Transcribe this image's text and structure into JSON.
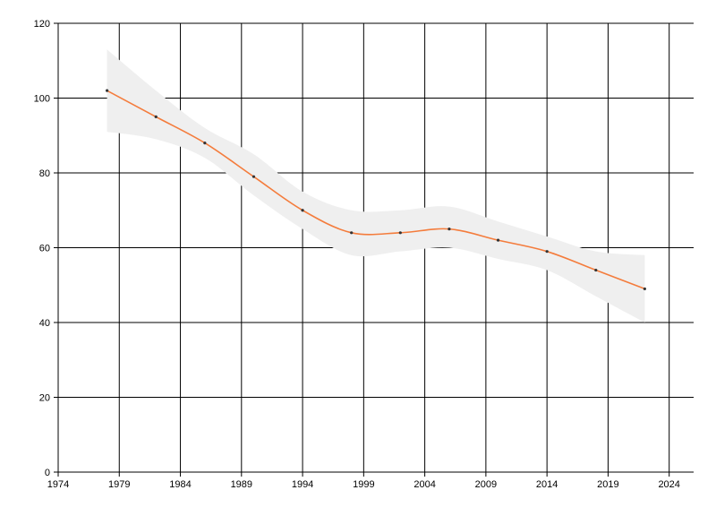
{
  "chart_data": {
    "type": "line",
    "title": "",
    "xlabel": "",
    "ylabel": "",
    "xlim": [
      1974,
      2026
    ],
    "ylim": [
      0,
      120
    ],
    "x_ticks": [
      "1974",
      "1979",
      "1984",
      "1989",
      "1994",
      "1999",
      "2004",
      "2009",
      "2014",
      "2019",
      "2024"
    ],
    "y_ticks": [
      "0",
      "20",
      "40",
      "60",
      "80",
      "100",
      "120"
    ],
    "grid": true,
    "legend": "none",
    "colors": {
      "line": "#f47c3c",
      "marker": "#333333",
      "band": "#efefef",
      "grid": "#000000"
    },
    "series": [
      {
        "x": [
          1978,
          1982,
          1986,
          1990,
          1994,
          1998,
          2002,
          2006,
          2010,
          2014,
          2018,
          2022
        ],
        "values": [
          102,
          95,
          88,
          79,
          70,
          64,
          64,
          65,
          62,
          59,
          54,
          49
        ],
        "lower": [
          91,
          89,
          84,
          74,
          65,
          58,
          59,
          60,
          57,
          54,
          47,
          40
        ],
        "upper": [
          113,
          102,
          92,
          85,
          75,
          70,
          70,
          71,
          67,
          63,
          59,
          58
        ]
      }
    ]
  }
}
